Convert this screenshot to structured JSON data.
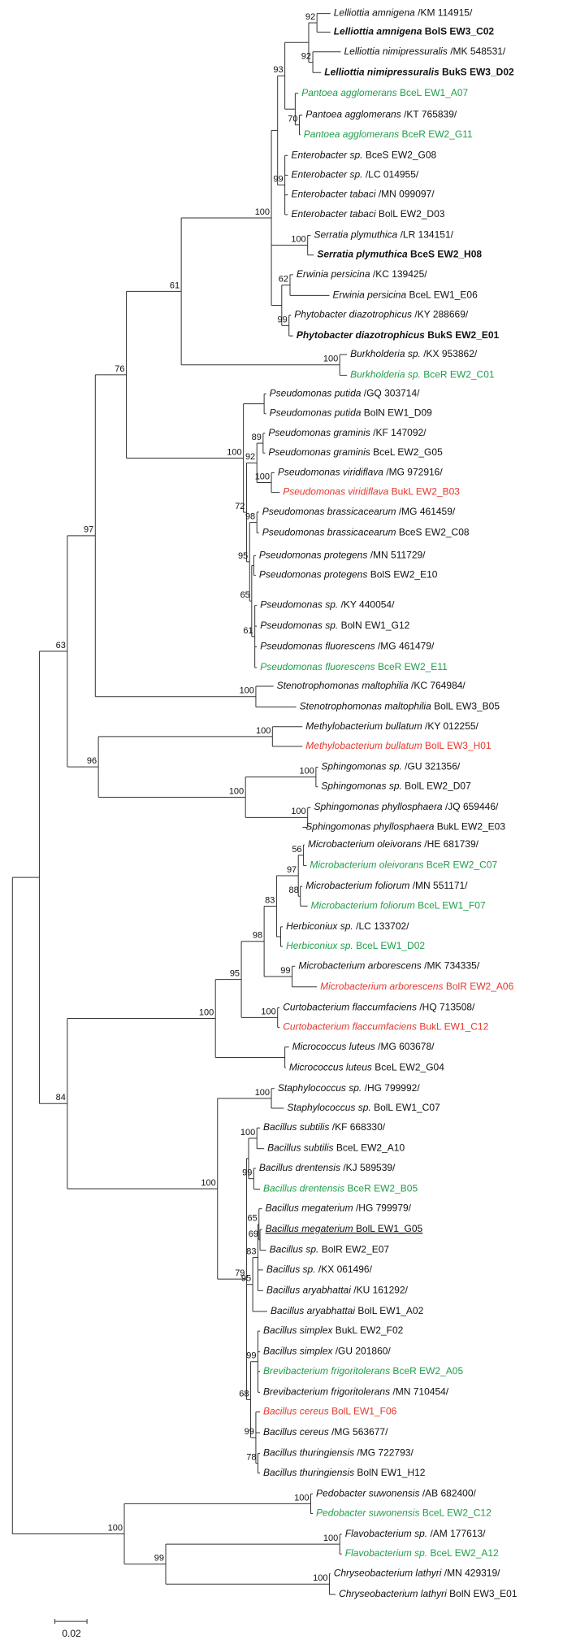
{
  "leaves": [
    {
      "name": "Lelliottia amnigena",
      "id": "/KM 114915/",
      "style": "plain"
    },
    {
      "name": "Lelliottia amnigena",
      "id": "BolS EW3_C02",
      "style": "bold"
    },
    {
      "name": "Lelliottia nimipressuralis",
      "id": "/MK 548531/",
      "style": "plain"
    },
    {
      "name": "Lelliottia nimipressuralis",
      "id": "BukS EW3_D02",
      "style": "bold"
    },
    {
      "name": "Pantoea agglomerans",
      "id": "BceL EW1_A07",
      "style": "green"
    },
    {
      "name": "Pantoea agglomerans",
      "id": "/KT 765839/",
      "style": "plain"
    },
    {
      "name": "Pantoea agglomerans",
      "id": "BceR EW2_G11",
      "style": "green"
    },
    {
      "name": "Enterobacter sp.",
      "id": "BceS EW2_G08",
      "style": "plain"
    },
    {
      "name": "Enterobacter sp.",
      "id": "/LC 014955/",
      "style": "plain"
    },
    {
      "name": "Enterobacter tabaci",
      "id": "/MN 099097/",
      "style": "plain"
    },
    {
      "name": "Enterobacter tabaci",
      "id": "BolL EW2_D03",
      "style": "plain"
    },
    {
      "name": "Serratia plymuthica",
      "id": "/LR 134151/",
      "style": "plain"
    },
    {
      "name": "Serratia plymuthica",
      "id": "BceS EW2_H08",
      "style": "bold"
    },
    {
      "name": "Erwinia persicina",
      "id": "/KC 139425/",
      "style": "plain"
    },
    {
      "name": "Erwinia persicina",
      "id": "BceL EW1_E06",
      "style": "plain"
    },
    {
      "name": "Phytobacter diazotrophicus",
      "id": "/KY 288669/",
      "style": "plain"
    },
    {
      "name": "Phytobacter diazotrophicus",
      "id": "BukS EW2_E01",
      "style": "bold"
    },
    {
      "name": "Burkholderia sp.",
      "id": "/KX 953862/",
      "style": "plain"
    },
    {
      "name": "Burkholderia sp.",
      "id": "BceR EW2_C01",
      "style": "green"
    },
    {
      "name": "Pseudomonas putida",
      "id": "/GQ 303714/",
      "style": "plain"
    },
    {
      "name": "Pseudomonas putida",
      "id": "BolN EW1_D09",
      "style": "plain"
    },
    {
      "name": "Pseudomonas graminis",
      "id": "/KF 147092/",
      "style": "plain"
    },
    {
      "name": "Pseudomonas graminis",
      "id": "BceL EW2_G05",
      "style": "plain"
    },
    {
      "name": "Pseudomonas viridiflava",
      "id": "/MG 972916/",
      "style": "plain"
    },
    {
      "name": "Pseudomonas viridiflava",
      "id": "BukL EW2_B03",
      "style": "red"
    },
    {
      "name": "Pseudomonas brassicacearum",
      "id": "/MG 461459/",
      "style": "plain"
    },
    {
      "name": "Pseudomonas brassicacearum",
      "id": "BceS EW2_C08",
      "style": "plain"
    },
    {
      "name": "Pseudomonas protegens",
      "id": "/MN 511729/",
      "style": "plain"
    },
    {
      "name": "Pseudomonas protegens",
      "id": "BolS EW2_E10",
      "style": "plain"
    },
    {
      "name": "Pseudomonas sp.",
      "id": "/KY 440054/",
      "style": "plain"
    },
    {
      "name": "Pseudomonas sp.",
      "id": "BolN EW1_G12",
      "style": "plain"
    },
    {
      "name": "Pseudomonas fluorescens",
      "id": "/MG 461479/",
      "style": "plain"
    },
    {
      "name": "Pseudomonas fluorescens",
      "id": "BceR EW2_E11",
      "style": "green"
    },
    {
      "name": "Stenotrophomonas maltophilia",
      "id": "/KC 764984/",
      "style": "plain"
    },
    {
      "name": "Stenotrophomonas maltophilia",
      "id": "BolL EW3_B05",
      "style": "plain"
    },
    {
      "name": "Methylobacterium bullatum",
      "id": "/KY 012255/",
      "style": "plain"
    },
    {
      "name": "Methylobacterium bullatum",
      "id": "BolL EW3_H01",
      "style": "red"
    },
    {
      "name": "Sphingomonas sp.",
      "id": "/GU 321356/",
      "style": "plain"
    },
    {
      "name": "Sphingomonas sp.",
      "id": "BolL EW2_D07",
      "style": "plain"
    },
    {
      "name": "Sphingomonas phyllosphaera",
      "id": "/JQ 659446/",
      "style": "plain"
    },
    {
      "name": "Sphingomonas phyllosphaera",
      "id": "BukL EW2_E03",
      "style": "plain"
    },
    {
      "name": "Microbacterium oleivorans",
      "id": "/HE 681739/",
      "style": "plain"
    },
    {
      "name": "Microbacterium oleivorans",
      "id": "BceR EW2_C07",
      "style": "green"
    },
    {
      "name": "Microbacterium foliorum",
      "id": "/MN 551171/",
      "style": "plain"
    },
    {
      "name": "Microbacterium foliorum",
      "id": "BceL EW1_F07",
      "style": "green"
    },
    {
      "name": "Herbiconiux sp.",
      "id": "/LC 133702/",
      "style": "plain"
    },
    {
      "name": "Herbiconiux sp.",
      "id": "BceL EW1_D02",
      "style": "green"
    },
    {
      "name": "Microbacterium arborescens",
      "id": "/MK 734335/",
      "style": "plain"
    },
    {
      "name": "Microbacterium arborescens",
      "id": "BolR EW2_A06",
      "style": "red"
    },
    {
      "name": "Curtobacterium flaccumfaciens",
      "id": "/HQ 713508/",
      "style": "plain"
    },
    {
      "name": "Curtobacterium flaccumfaciens",
      "id": "BukL EW1_C12",
      "style": "red"
    },
    {
      "name": "Micrococcus luteus",
      "id": "/MG 603678/",
      "style": "plain"
    },
    {
      "name": "Micrococcus luteus",
      "id": "BceL EW2_G04",
      "style": "plain"
    },
    {
      "name": "Staphylococcus sp.",
      "id": "/HG 799992/",
      "style": "plain"
    },
    {
      "name": "Staphylococcus sp.",
      "id": "BolL EW1_C07",
      "style": "plain"
    },
    {
      "name": "Bacillus subtilis",
      "id": "/KF 668330/",
      "style": "plain"
    },
    {
      "name": "Bacillus subtilis",
      "id": "BceL EW2_A10",
      "style": "plain"
    },
    {
      "name": "Bacillus drentensis",
      "id": "/KJ 589539/",
      "style": "plain"
    },
    {
      "name": "Bacillus drentensis",
      "id": "BceR EW2_B05",
      "style": "green"
    },
    {
      "name": "Bacillus megaterium",
      "id": "/HG 799979/",
      "style": "plain"
    },
    {
      "name": "Bacillus megaterium",
      "id": "BolL EW1_G05",
      "style": "underline"
    },
    {
      "name": "Bacillus sp.",
      "id": "BolR EW2_E07",
      "style": "plain"
    },
    {
      "name": "Bacillus sp.",
      "id": "/KX 061496/",
      "style": "plain"
    },
    {
      "name": "Bacillus aryabhattai",
      "id": "/KU 161292/",
      "style": "plain"
    },
    {
      "name": "Bacillus aryabhattai",
      "id": "BolL EW1_A02",
      "style": "plain"
    },
    {
      "name": "Bacillus simplex",
      "id": "BukL EW2_F02",
      "style": "plain"
    },
    {
      "name": "Bacillus simplex",
      "id": "/GU 201860/",
      "style": "plain"
    },
    {
      "name": "Brevibacterium frigoritolerans",
      "id": "BceR EW2_A05",
      "style": "green"
    },
    {
      "name": "Brevibacterium frigoritolerans",
      "id": "/MN 710454/",
      "style": "plain"
    },
    {
      "name": "Bacillus cereus",
      "id": "BolL EW1_F06",
      "style": "red"
    },
    {
      "name": "Bacillus cereus",
      "id": "/MG 563677/",
      "style": "plain"
    },
    {
      "name": "Bacillus thuringiensis",
      "id": "/MG 722793/",
      "style": "plain"
    },
    {
      "name": "Bacillus thuringiensis",
      "id": "BolN EW1_H12",
      "style": "plain"
    },
    {
      "name": "Pedobacter suwonensis",
      "id": "/AB 682400/",
      "style": "plain"
    },
    {
      "name": "Pedobacter suwonensis",
      "id": "BceL EW2_C12",
      "style": "green"
    },
    {
      "name": "Flavobacterium sp.",
      "id": "/AM 177613/",
      "style": "plain"
    },
    {
      "name": "Flavobacterium sp.",
      "id": "BceL EW2_A12",
      "style": "green"
    },
    {
      "name": "Chryseobacterium lathyri",
      "id": "/MN 429319/",
      "style": "plain"
    },
    {
      "name": "Chryseobacterium lathyri",
      "id": "BolN EW3_E01",
      "style": "plain"
    }
  ],
  "bootstrap": [
    63,
    97,
    76,
    61,
    100,
    93,
    92,
    92,
    70,
    99,
    100,
    62,
    99,
    100,
    100,
    72,
    92,
    89,
    100,
    95,
    98,
    65,
    61,
    100,
    96,
    100,
    100,
    100,
    100,
    84,
    100,
    95,
    98,
    83,
    97,
    56,
    88,
    99,
    100,
    100,
    100,
    79,
    100,
    99,
    95,
    83,
    65,
    69,
    68,
    99,
    99,
    78,
    100,
    100,
    99,
    100,
    100
  ],
  "colors": {
    "green": "#1f9e4a",
    "red": "#e5382d"
  },
  "scale_label": "0.02"
}
